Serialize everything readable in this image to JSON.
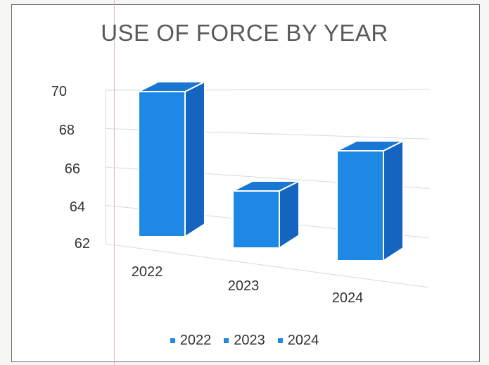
{
  "chart_data": {
    "type": "bar",
    "title": "USE OF FORCE BY YEAR",
    "categories": [
      "2022",
      "2023",
      "2024"
    ],
    "values": [
      70,
      65,
      68
    ],
    "ylim": [
      62,
      70
    ],
    "yticks": [
      "62",
      "64",
      "66",
      "68",
      "70"
    ],
    "legend": {
      "placement": "bottom",
      "entries": [
        "2022",
        "2023",
        "2024"
      ]
    },
    "grid": true,
    "three_d": true,
    "colors": {
      "bar_front": "#1e88e5",
      "bar_side": "#1565c0",
      "bar_top": "#1976d2",
      "bar_edge": "#ffffff",
      "grid": "#d9d9d9"
    }
  }
}
